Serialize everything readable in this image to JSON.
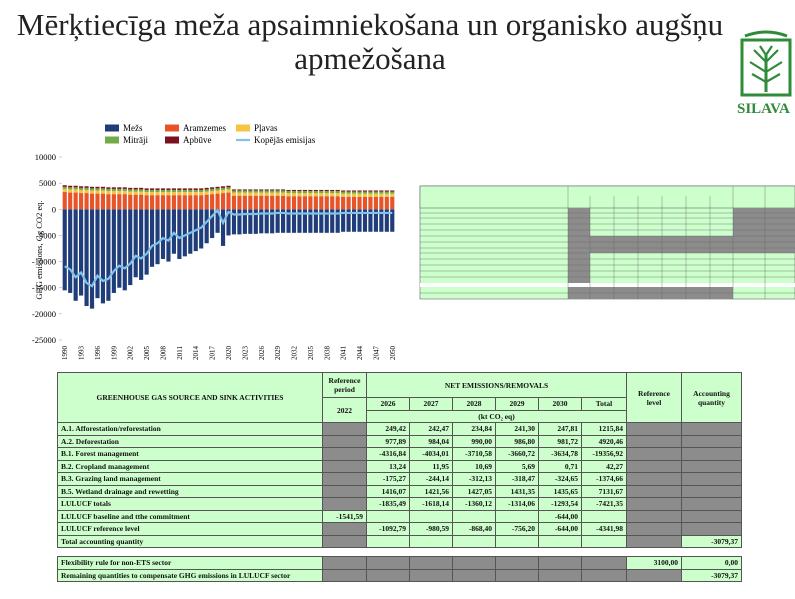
{
  "header": {
    "title": "Mērķtiecīga meža apsaimniekošana un organisko augšņu apmežošana",
    "logo": "SILAVA"
  },
  "chart_data": {
    "type": "bar",
    "stacked": true,
    "y_label": "GHG emissions, Gg CO2 eq.",
    "categories": [
      1990,
      null,
      null,
      1993,
      null,
      null,
      1996,
      null,
      null,
      1999,
      null,
      null,
      2002,
      null,
      null,
      2005,
      null,
      null,
      2008,
      null,
      null,
      2011,
      null,
      null,
      2014,
      null,
      null,
      2017,
      null,
      null,
      2020,
      null,
      null,
      2023,
      null,
      null,
      2026,
      null,
      null,
      2029,
      null,
      null,
      2032,
      null,
      null,
      2035,
      null,
      null,
      2038,
      null,
      null,
      2041,
      null,
      null,
      2044,
      null,
      null,
      2047,
      null,
      null,
      2050
    ],
    "ylim": [
      -25000,
      10000
    ],
    "yticks": [
      -25000,
      -20000,
      -15000,
      -10000,
      -5000,
      0,
      5000,
      10000
    ],
    "grid": false,
    "series": [
      {
        "name": "Mežs",
        "color": "#1f3d7a",
        "values": [
          -15500,
          -16000,
          -17500,
          -16500,
          -18500,
          -19000,
          -17000,
          -18000,
          -17500,
          -16000,
          -15000,
          -15500,
          -14500,
          -13000,
          -13500,
          -12500,
          -11000,
          -10500,
          -9500,
          -10000,
          -8500,
          -9500,
          -9000,
          -8500,
          -8000,
          -7500,
          -6500,
          -5500,
          -4500,
          -7000,
          -5000,
          -4800,
          -4800,
          -4700,
          -4700,
          -4700,
          -4600,
          -4600,
          -4600,
          -4500,
          -4500,
          -4500,
          -4500,
          -4500,
          -4500,
          -4500,
          -4500,
          -4500,
          -4500,
          -4500,
          -4500,
          -4300,
          -4300,
          -4300,
          -4300,
          -4300,
          -4300,
          -4300,
          -4300,
          -4300,
          -4300
        ]
      },
      {
        "name": "Aramzemes",
        "color": "#e8542a",
        "values": [
          3300,
          3200,
          3200,
          3100,
          3100,
          3000,
          3000,
          3000,
          2900,
          2900,
          2900,
          2900,
          2800,
          2800,
          2800,
          2700,
          2700,
          2700,
          2700,
          2700,
          2700,
          2700,
          2700,
          2700,
          2700,
          2700,
          2800,
          2900,
          3000,
          3100,
          3200,
          2600,
          2600,
          2600,
          2600,
          2600,
          2600,
          2600,
          2600,
          2600,
          2600,
          2500,
          2500,
          2500,
          2500,
          2500,
          2500,
          2500,
          2500,
          2500,
          2500,
          2400,
          2400,
          2400,
          2400,
          2400,
          2400,
          2400,
          2400,
          2400,
          2400
        ]
      },
      {
        "name": "Pļavas",
        "color": "#f6c343",
        "values": [
          600,
          600,
          600,
          600,
          600,
          600,
          600,
          600,
          600,
          600,
          600,
          600,
          600,
          600,
          600,
          600,
          600,
          600,
          600,
          600,
          600,
          600,
          600,
          600,
          600,
          600,
          600,
          600,
          600,
          600,
          600,
          600,
          600,
          600,
          600,
          600,
          600,
          600,
          600,
          600,
          600,
          600,
          600,
          600,
          600,
          600,
          600,
          600,
          600,
          600,
          600,
          600,
          600,
          600,
          600,
          600,
          600,
          600,
          600,
          600,
          600
        ]
      },
      {
        "name": "Mitrāji",
        "color": "#70ad47",
        "values": [
          400,
          400,
          400,
          400,
          400,
          400,
          400,
          400,
          400,
          400,
          400,
          400,
          400,
          400,
          400,
          400,
          400,
          400,
          400,
          400,
          400,
          400,
          400,
          400,
          400,
          400,
          400,
          400,
          400,
          400,
          400,
          400,
          400,
          400,
          400,
          400,
          400,
          400,
          400,
          400,
          400,
          400,
          400,
          400,
          400,
          400,
          400,
          400,
          400,
          400,
          400,
          400,
          400,
          400,
          400,
          400,
          400,
          400,
          400,
          400,
          400
        ]
      },
      {
        "name": "Apbūve",
        "color": "#7a1020",
        "values": [
          300,
          300,
          300,
          300,
          300,
          300,
          300,
          300,
          300,
          300,
          300,
          300,
          300,
          300,
          300,
          300,
          300,
          300,
          300,
          300,
          300,
          300,
          300,
          300,
          300,
          300,
          300,
          300,
          300,
          300,
          300,
          200,
          200,
          200,
          200,
          200,
          200,
          200,
          200,
          200,
          200,
          200,
          200,
          200,
          200,
          200,
          200,
          200,
          200,
          200,
          200,
          200,
          200,
          200,
          200,
          200,
          200,
          200,
          200,
          200,
          200
        ]
      },
      {
        "name": "Kopējās emisijas",
        "type": "line",
        "color": "#7fc3ec",
        "values": [
          -10900,
          -11500,
          -13000,
          -12100,
          -14100,
          -14700,
          -12700,
          -13700,
          -13300,
          -11800,
          -10800,
          -11300,
          -10400,
          -8900,
          -9400,
          -8500,
          -7000,
          -6500,
          -5500,
          -6000,
          -4500,
          -5500,
          -5000,
          -4500,
          -4000,
          -3500,
          -2400,
          -1300,
          -200,
          -2600,
          -500,
          -1000,
          -1000,
          -900,
          -900,
          -900,
          -800,
          -800,
          -800,
          -700,
          -700,
          -800,
          -800,
          -800,
          -800,
          -800,
          -800,
          -800,
          -800,
          -800,
          -800,
          -700,
          -700,
          -700,
          -700,
          -700,
          -700,
          -700,
          -700,
          -700,
          -700
        ]
      }
    ]
  },
  "table": {
    "header": {
      "activity": "GREENHOUSE GAS SOURCE AND SINK ACTIVITIES",
      "reference_period": "Reference period",
      "net": "NET EMISSIONS/REMOVALS",
      "reference_level": "Reference level",
      "accounting": "Accounting quantity",
      "years": [
        "2022",
        "2026",
        "2027",
        "2028",
        "2029",
        "2030",
        "Total"
      ],
      "unit": "(kt CO₂ eq)"
    },
    "rows": [
      [
        "A.1. Afforestation/reforestation",
        null,
        "249,42",
        "242,47",
        "234,84",
        "241,30",
        "247,81",
        "1215,84",
        null,
        null
      ],
      [
        "A.2. Deforestation",
        null,
        "977,89",
        "984,04",
        "990,00",
        "986,80",
        "981,72",
        "4920,46",
        null,
        null
      ],
      [
        "B.1. Forest management",
        null,
        "-4316,84",
        "-4034,01",
        "-3710,58",
        "-3660,72",
        "-3634,78",
        "-19356,92",
        null,
        null
      ],
      [
        "B.2. Cropland management",
        null,
        "13,24",
        "11,95",
        "10,69",
        "5,69",
        "0,71",
        "42,27",
        null,
        null
      ],
      [
        "B.3. Grazing land management",
        null,
        "-175,27",
        "-244,14",
        "-312,13",
        "-318,47",
        "-324,65",
        "-1374,66",
        null,
        null
      ],
      [
        "B.5. Wetland drainage and rewetting",
        null,
        "1416,07",
        "1421,56",
        "1427,05",
        "1431,35",
        "1435,65",
        "7131,67",
        null,
        null
      ],
      [
        "LULUCF totals",
        null,
        "-1835,49",
        "-1618,14",
        "-1360,12",
        "-1314,06",
        "-1293,54",
        "-7421,35",
        null,
        null
      ],
      [
        "LULUCF baseline and tthe commitment",
        "-1541,59",
        null,
        null,
        null,
        null,
        "-644,00",
        null,
        null,
        null
      ],
      [
        "LULUCF reference level",
        null,
        "-1092,79",
        "-980,59",
        "-868,40",
        "-756,20",
        "-644,00",
        "-4341,98",
        null,
        null
      ],
      [
        "Total accounting quantity",
        null,
        null,
        null,
        null,
        null,
        null,
        null,
        null,
        "-3079,37"
      ]
    ],
    "footer_rows": [
      [
        "Flexibility rule for non-ETS sector",
        null,
        null,
        null,
        null,
        null,
        null,
        null,
        "3100,00",
        "0,00"
      ],
      [
        "Remaining quantities to compensate GHG emissions in LULUCF sector",
        null,
        null,
        null,
        null,
        null,
        null,
        null,
        null,
        "-3079,37"
      ]
    ]
  }
}
